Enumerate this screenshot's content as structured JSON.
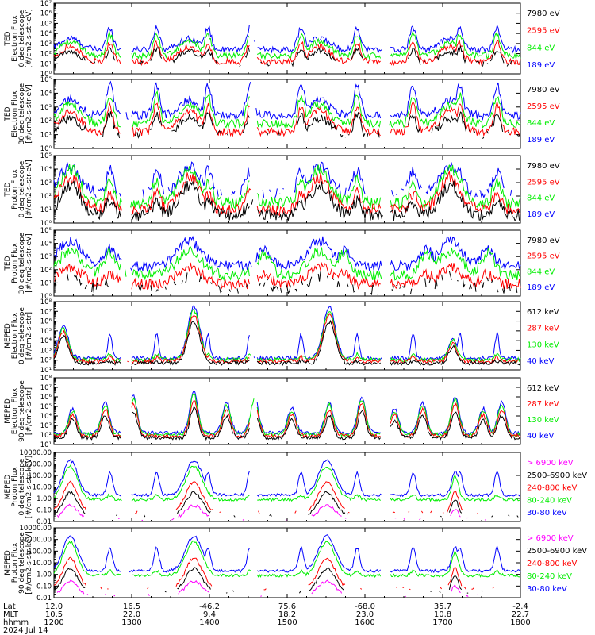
{
  "colors": {
    "black": "#000000",
    "red": "#ff0000",
    "green": "#00ee00",
    "blue": "#0000ff",
    "magenta": "#ff00ff"
  },
  "chart_data": [
    {
      "type": "line",
      "instrument": "TED",
      "ylabel_lines": [
        "TED",
        "Electron Flux",
        "0 deg telescope",
        "[#/cm2-s-str-eV]"
      ],
      "yscale": "log",
      "ylim": [
        1,
        10000000
      ],
      "ytick_labels": [
        "10⁰",
        "10¹",
        "10²",
        "10³",
        "10⁴",
        "10⁵",
        "10⁶",
        "10⁷"
      ],
      "channels": [
        {
          "name": "7980 eV",
          "color": "#000000"
        },
        {
          "name": "2595 eV",
          "color": "#ff0000"
        },
        {
          "name": "844 eV",
          "color": "#00ee00"
        },
        {
          "name": "189 eV",
          "color": "#0000ff"
        }
      ],
      "pattern": "ted_e"
    },
    {
      "type": "line",
      "instrument": "TED",
      "ylabel_lines": [
        "TED",
        "Electron Flux",
        "30 deg telescope",
        "[#/cm2-s-str-eV]"
      ],
      "yscale": "log",
      "ylim": [
        1,
        100000
      ],
      "ytick_labels": [
        "10⁰",
        "10¹",
        "10²",
        "10³",
        "10⁴",
        "10⁵"
      ],
      "channels": [
        {
          "name": "7980 eV",
          "color": "#000000"
        },
        {
          "name": "2595 eV",
          "color": "#ff0000"
        },
        {
          "name": "844 eV",
          "color": "#00ee00"
        },
        {
          "name": "189 eV",
          "color": "#0000ff"
        }
      ],
      "pattern": "ted_e"
    },
    {
      "type": "line",
      "instrument": "TED",
      "ylabel_lines": [
        "TED",
        "Proton Flux",
        "0 deg telescope",
        "[#/cm2-s-str-eV]"
      ],
      "yscale": "log",
      "ylim": [
        1,
        100000
      ],
      "ytick_labels": [
        "10⁰",
        "10¹",
        "10²",
        "10³",
        "10⁴",
        "10⁵"
      ],
      "channels": [
        {
          "name": "7980 eV",
          "color": "#000000"
        },
        {
          "name": "2595 eV",
          "color": "#ff0000"
        },
        {
          "name": "844 eV",
          "color": "#00ee00"
        },
        {
          "name": "189 eV",
          "color": "#0000ff"
        }
      ],
      "pattern": "ted_p0"
    },
    {
      "type": "line",
      "instrument": "TED",
      "ylabel_lines": [
        "TED",
        "Proton Flux",
        "30 deg telescope",
        "[#/cm2-s-str-eV]"
      ],
      "yscale": "log",
      "ylim": [
        1,
        100000
      ],
      "ytick_labels": [
        "10⁰",
        "10¹",
        "10²",
        "10³",
        "10⁴",
        "10⁵"
      ],
      "channels": [
        {
          "name": "7980 eV",
          "color": "#000000"
        },
        {
          "name": "2595 eV",
          "color": "#ff0000"
        },
        {
          "name": "844 eV",
          "color": "#00ee00"
        },
        {
          "name": "189 eV",
          "color": "#0000ff"
        }
      ],
      "pattern": "ted_p30"
    },
    {
      "type": "line",
      "instrument": "MEPED",
      "ylabel_lines": [
        "MEPED",
        "Electron Flux",
        "0 deg telescope",
        "[#/cm2-s-str]"
      ],
      "yscale": "log",
      "ylim": [
        10,
        100000000
      ],
      "ytick_labels": [
        "10¹",
        "10²",
        "10³",
        "10⁴",
        "10⁵",
        "10⁶",
        "10⁷",
        "10⁸"
      ],
      "channels": [
        {
          "name": "612 keV",
          "color": "#000000"
        },
        {
          "name": "287 keV",
          "color": "#ff0000"
        },
        {
          "name": "130 keV",
          "color": "#00ee00"
        },
        {
          "name": "40 keV",
          "color": "#0000ff"
        }
      ],
      "pattern": "meped_e0"
    },
    {
      "type": "line",
      "instrument": "MEPED",
      "ylabel_lines": [
        "MEPED",
        "Electron Flux",
        "90 deg telescope",
        "[#/cm2-s-str]"
      ],
      "yscale": "log",
      "ylim": [
        10,
        100000000
      ],
      "ytick_labels": [
        "10¹",
        "10²",
        "10³",
        "10⁴",
        "10⁵",
        "10⁶",
        "10⁷",
        "10⁸"
      ],
      "channels": [
        {
          "name": "612 keV",
          "color": "#000000"
        },
        {
          "name": "287 keV",
          "color": "#ff0000"
        },
        {
          "name": "130 keV",
          "color": "#00ee00"
        },
        {
          "name": "40 keV",
          "color": "#0000ff"
        }
      ],
      "pattern": "meped_e90"
    },
    {
      "type": "line",
      "instrument": "MEPED",
      "ylabel_lines": [
        "MEPED",
        "Proton Flux",
        "0 deg telescope",
        "[#/cm2-s-str-keV]"
      ],
      "yscale": "log",
      "ylim": [
        0.01,
        10000
      ],
      "ytick_labels": [
        "0.01",
        "0.10",
        "1.00",
        "10.00",
        "100.00",
        "1000.00",
        "10000.00"
      ],
      "channels": [
        {
          "name": "> 6900 keV",
          "color": "#ff00ff"
        },
        {
          "name": "2500-6900 keV",
          "color": "#000000"
        },
        {
          "name": "240-800 keV",
          "color": "#ff0000"
        },
        {
          "name": "80-240 keV",
          "color": "#00ee00"
        },
        {
          "name": "30-80 keV",
          "color": "#0000ff"
        }
      ],
      "pattern": "meped_p0"
    },
    {
      "type": "line",
      "instrument": "MEPED",
      "ylabel_lines": [
        "MEPED",
        "Proton Flux",
        "90 deg telescope",
        "[#/cm2-s-str-keV]"
      ],
      "yscale": "log",
      "ylim": [
        0.01,
        10000
      ],
      "ytick_labels": [
        "0.01",
        "0.10",
        "1.00",
        "10.00",
        "100.00",
        "1000.00",
        "10000.00"
      ],
      "channels": [
        {
          "name": "> 6900 keV",
          "color": "#ff00ff"
        },
        {
          "name": "2500-6900 keV",
          "color": "#000000"
        },
        {
          "name": "240-800 keV",
          "color": "#ff0000"
        },
        {
          "name": "80-240 keV",
          "color": "#00ee00"
        },
        {
          "name": "30-80 keV",
          "color": "#0000ff"
        }
      ],
      "pattern": "meped_p90"
    }
  ],
  "x_axis": {
    "row_labels": [
      "Lat",
      "MLT",
      "hhmm"
    ],
    "xlim": [
      1200,
      1800
    ],
    "ticks": [
      {
        "lat": "12.0",
        "mlt": "10.5",
        "hhmm": "1200"
      },
      {
        "lat": "16.5",
        "mlt": "22.0",
        "hhmm": "1300"
      },
      {
        "lat": "-46.2",
        "mlt": "9.4",
        "hhmm": "1400"
      },
      {
        "lat": "75.6",
        "mlt": "18.2",
        "hhmm": "1500"
      },
      {
        "lat": "-68.0",
        "mlt": "23.0",
        "hhmm": "1600"
      },
      {
        "lat": "35.7",
        "mlt": "10.8",
        "hhmm": "1700"
      },
      {
        "lat": "-2.4",
        "mlt": "22.7",
        "hhmm": "1800"
      }
    ],
    "date": "2024 Jul 14"
  }
}
